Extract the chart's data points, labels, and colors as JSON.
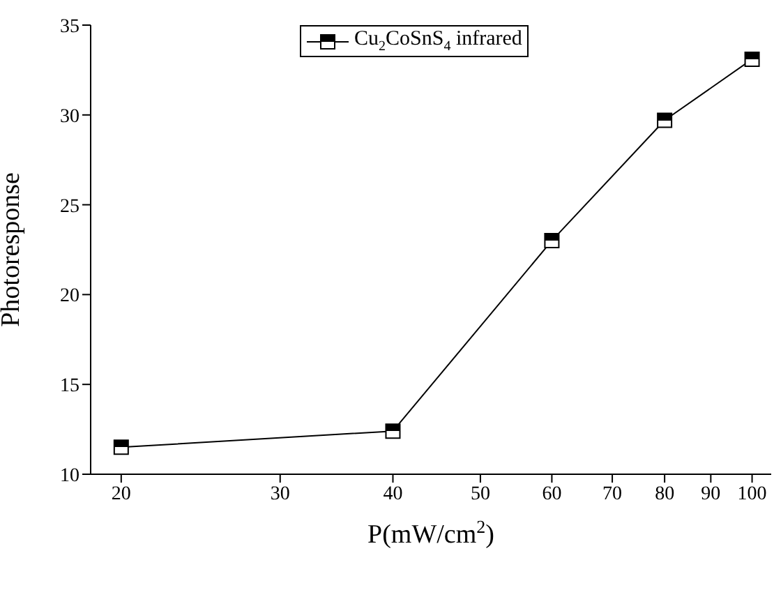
{
  "chart_data": {
    "type": "line",
    "xlabel": "P(mW/cm$^{2}$)",
    "ylabel": "Photoresponse",
    "x": [
      20,
      40,
      60,
      80,
      100
    ],
    "series": [
      {
        "name": "Cu$_{2}$CoSnS$_{4}$ infrared",
        "color": "#000000",
        "values": [
          11.5,
          12.4,
          23.0,
          29.7,
          33.1
        ]
      }
    ],
    "log": "x",
    "xlim": [
      18.5,
      105
    ],
    "xticks": [
      20,
      30,
      40,
      50,
      60,
      70,
      80,
      90,
      100
    ],
    "ylim": [
      10,
      35
    ],
    "yticks": [
      10,
      15,
      20,
      25,
      30,
      35
    ],
    "grid": false,
    "legend": "top",
    "marker": "square",
    "line_style": "solid"
  }
}
